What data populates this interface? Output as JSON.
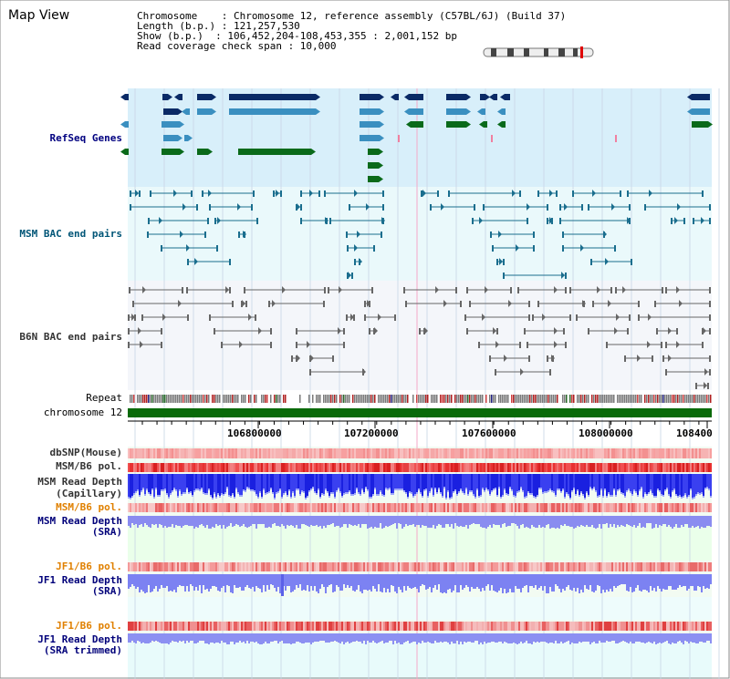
{
  "title": "Map View",
  "info": {
    "line1": "Chromosome    : Chromosome 12, reference assembly (C57BL/6J) (Build 37)",
    "line2": "Length (b.p.) : 121,257,530",
    "line3": "Show (b.p.)  : 106,452,204-108,453,355 : 2,001,152 bp",
    "line4": "Read coverage check span : 10,000"
  },
  "tracks": {
    "refseq": "RefSeq Genes",
    "msm_bac": "MSM BAC end pairs",
    "b6n_bac": "B6N BAC end pairs",
    "repeat": "Repeat",
    "chromosome": "chromosome 12",
    "dbsnp": "dbSNP(Mouse)",
    "msm_pol1": "MSM/B6 pol.",
    "msm_depth_cap1": "MSM Read Depth",
    "msm_depth_cap2": "(Capillary)",
    "msm_pol2": "MSM/B6 pol.",
    "msm_depth_sra1": "MSM Read Depth",
    "msm_depth_sra2": "(SRA)",
    "jf1_pol1": "JF1/B6 pol.",
    "jf1_depth_sra1": "JF1 Read Depth",
    "jf1_depth_sra2": "(SRA)",
    "jf1_pol2": "JF1/B6 pol.",
    "jf1_depth_trim1": "JF1 Read Depth",
    "jf1_depth_trim2": "(SRA trimmed)"
  },
  "axis": {
    "ticks": [
      "106800000",
      "107200000",
      "107600000",
      "108000000",
      "108400"
    ]
  },
  "colors": {
    "refseq_bg": "#d8effa",
    "bac_bg": "#eaf9fb",
    "b6n_bg": "#f4f6fa",
    "lower_bg": "#eaffea",
    "dark_navy": "#0a2a66",
    "steel": "#3a8fc0",
    "green": "#0a6a1a",
    "chromosome": "#0a6a0a"
  }
}
